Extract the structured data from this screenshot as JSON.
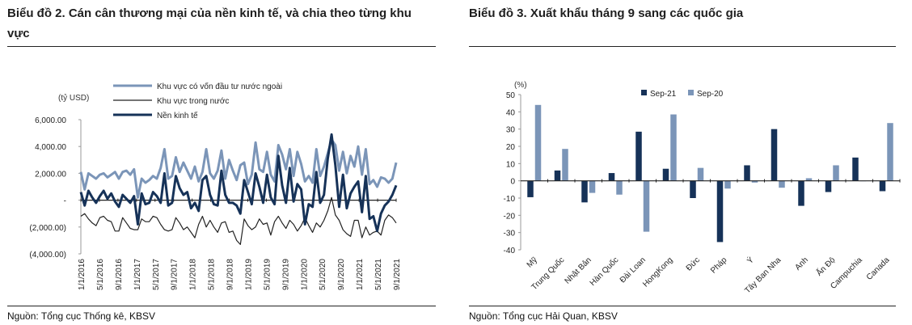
{
  "left": {
    "title": "Biểu đồ 2. Cán cân thương mại của nền kinh tế, và chia theo từng khu vực",
    "source": "Nguồn: Tổng cục Thống kê, KBSV",
    "chart_data": {
      "type": "line",
      "ylabel": "(tỷ USD)",
      "ylim": [
        -4000,
        6000
      ],
      "yticks": [
        6000,
        4000,
        2000,
        0,
        -2000,
        -4000
      ],
      "ytick_labels": [
        "6,000.00",
        "4,000.00",
        "2,000.00",
        "-",
        "(2,000.00)",
        "(4,000.00)"
      ],
      "x_tick_labels": [
        "1/1/2016",
        "5/1/2016",
        "9/1/2016",
        "1/1/2017",
        "5/1/2017",
        "9/1/2017",
        "1/1/2018",
        "5/1/2018",
        "9/1/2018",
        "1/1/2019",
        "5/1/2019",
        "9/1/2019",
        "1/1/2020",
        "5/1/2020",
        "9/1/2020",
        "1/1/2021",
        "5/1/2021",
        "9/1/2021"
      ],
      "colors": {
        "fdi": "#7b95b8",
        "domestic": "#222222",
        "total": "#163258"
      },
      "series": [
        {
          "key": "fdi",
          "name": "Khu vực có vốn đầu tư nước ngoài",
          "values": [
            2100,
            800,
            2000,
            1800,
            1600,
            1900,
            2000,
            1700,
            1900,
            2100,
            1600,
            2100,
            2200,
            1900,
            2300,
            200,
            1600,
            1300,
            1500,
            1800,
            1600,
            2400,
            3800,
            1600,
            1800,
            3200,
            2100,
            2800,
            2200,
            1600,
            2500,
            1400,
            2100,
            3800,
            2000,
            1600,
            2200,
            3700,
            1600,
            3000,
            2200,
            1500,
            2600,
            2800,
            1200,
            1900,
            4300,
            2300,
            2100,
            3600,
            1900,
            1400,
            4100,
            3400,
            2300,
            3800,
            1800,
            3600,
            2700,
            1400,
            1800,
            1300,
            3800,
            1800,
            2500,
            3500,
            4500,
            4100,
            2200,
            3600,
            2000,
            3300,
            2500,
            4000,
            1900,
            3800,
            1200,
            1500,
            1000,
            1700,
            1600,
            1300,
            1600,
            2800
          ]
        },
        {
          "key": "domestic",
          "name": "Khu vực trong nước",
          "values": [
            -1200,
            -1000,
            -1400,
            -1700,
            -1900,
            -1300,
            -1200,
            -1500,
            -1600,
            -2300,
            -2300,
            -1300,
            -1700,
            -2100,
            -2200,
            -2200,
            -1400,
            -1600,
            -1600,
            -1200,
            -1300,
            -1800,
            -2200,
            -2300,
            -2200,
            -1300,
            -1700,
            -2200,
            -2000,
            -2400,
            -2800,
            -1800,
            -1200,
            -2000,
            -1500,
            -2000,
            -2400,
            -1700,
            -1600,
            -2400,
            -2300,
            -3000,
            -3300,
            -1400,
            -1900,
            -2200,
            -2000,
            -1400,
            -1800,
            -1700,
            -2600,
            -1600,
            -1200,
            -1700,
            -2100,
            -1500,
            -1800,
            -2300,
            -1900,
            -1300,
            -1900,
            -2400,
            -1700,
            -2000,
            -1500,
            -800,
            200,
            -1100,
            -1500,
            -2200,
            -2500,
            -2700,
            -1500,
            -1500,
            -2800,
            -2000,
            -2600,
            -2400,
            -2300,
            -2600,
            -1500,
            -1100,
            -1300,
            -1700
          ]
        },
        {
          "key": "total",
          "name": "Nền kinh tế",
          "values": [
            600,
            -400,
            700,
            200,
            -200,
            300,
            700,
            100,
            500,
            -100,
            -500,
            400,
            100,
            -200,
            300,
            -1800,
            500,
            -300,
            -200,
            600,
            300,
            -200,
            2000,
            -400,
            -200,
            1800,
            900,
            400,
            600,
            -600,
            -200,
            -800,
            1500,
            1800,
            400,
            -300,
            -400,
            2200,
            400,
            -200,
            -200,
            -400,
            -1000,
            1500,
            600,
            -300,
            2000,
            1000,
            -200,
            1900,
            200,
            -300,
            3300,
            1100,
            -200,
            2400,
            -100,
            1200,
            800,
            -1800,
            -300,
            -500,
            2100,
            -200,
            400,
            3100,
            4900,
            2600,
            -500,
            1900,
            -600,
            500,
            1000,
            1400,
            -900,
            1800,
            -1400,
            -1200,
            -2300,
            -1000,
            -400,
            -100,
            400,
            1100
          ]
        }
      ]
    }
  },
  "right": {
    "title": "Biểu đồ 3. Xuất khẩu tháng 9 sang các quốc gia",
    "source": "Nguồn: Tổng cục Hải Quan, KBSV",
    "chart_data": {
      "type": "bar",
      "ylabel": "(%)",
      "ylim": [
        -40,
        50
      ],
      "yticks": [
        50,
        40,
        30,
        20,
        10,
        0,
        -10,
        -20,
        -30,
        -40
      ],
      "categories": [
        "Mỹ",
        "Trung Quốc",
        "Nhật Bản",
        "Hàn Quốc",
        "Đài Loan",
        "HongKong",
        "Đức",
        "Pháp",
        "Ý",
        "Tây Ban Nha",
        "Anh",
        "Ấn Độ",
        "Campuchia",
        "Canada"
      ],
      "colors": {
        "sep21": "#163258",
        "sep20": "#7b95b8"
      },
      "series": [
        {
          "key": "sep21",
          "name": "Sep-21",
          "values": [
            -9.5,
            6,
            -12.5,
            4.5,
            28.5,
            7,
            -10,
            -35.5,
            9,
            30,
            -14.5,
            -6.5,
            13.5,
            -6
          ]
        },
        {
          "key": "sep20",
          "name": "Sep-20",
          "values": [
            44,
            18.5,
            -7,
            -8,
            -29.5,
            38.5,
            7.5,
            -4.5,
            -1,
            -4,
            1.5,
            9,
            0,
            33.5
          ]
        }
      ]
    }
  }
}
